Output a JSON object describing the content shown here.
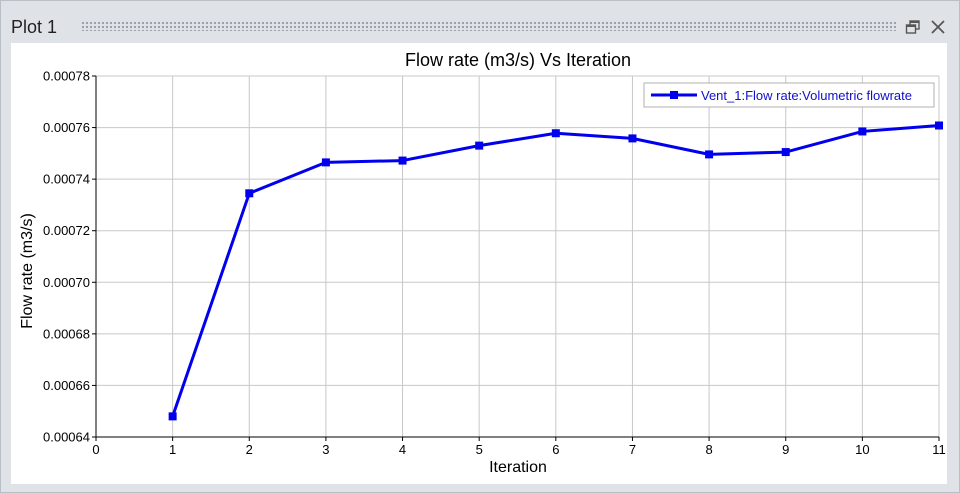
{
  "window": {
    "title": "Plot 1"
  },
  "icons": {
    "restore": "restore-icon",
    "close": "close-icon"
  },
  "colors": {
    "series": "#0000ee",
    "legend_text": "#1010cc",
    "grid": "#c8c8c8",
    "axis": "#000000"
  },
  "chart_data": {
    "type": "line",
    "title": "Flow rate (m3/s) Vs Iteration",
    "xlabel": "Iteration",
    "ylabel": "Flow rate (m3/s)",
    "xlim": [
      0,
      11
    ],
    "ylim": [
      0.00064,
      0.00078
    ],
    "xticks": [
      0,
      1,
      2,
      3,
      4,
      5,
      6,
      7,
      8,
      9,
      10,
      11
    ],
    "yticks": [
      "0.00064",
      "0.00066",
      "0.00068",
      "0.00070",
      "0.00072",
      "0.00074",
      "0.00076",
      "0.00078"
    ],
    "grid": true,
    "legend_position": "top-right",
    "series": [
      {
        "name": "Vent_1:Flow rate:Volumetric flowrate",
        "marker": "square",
        "x": [
          1,
          2,
          3,
          4,
          5,
          6,
          7,
          8,
          9,
          10,
          11
        ],
        "y": [
          0.000648,
          0.0007345,
          0.0007465,
          0.0007472,
          0.000753,
          0.0007578,
          0.0007558,
          0.0007496,
          0.0007505,
          0.0007585,
          0.0007608
        ]
      }
    ]
  }
}
